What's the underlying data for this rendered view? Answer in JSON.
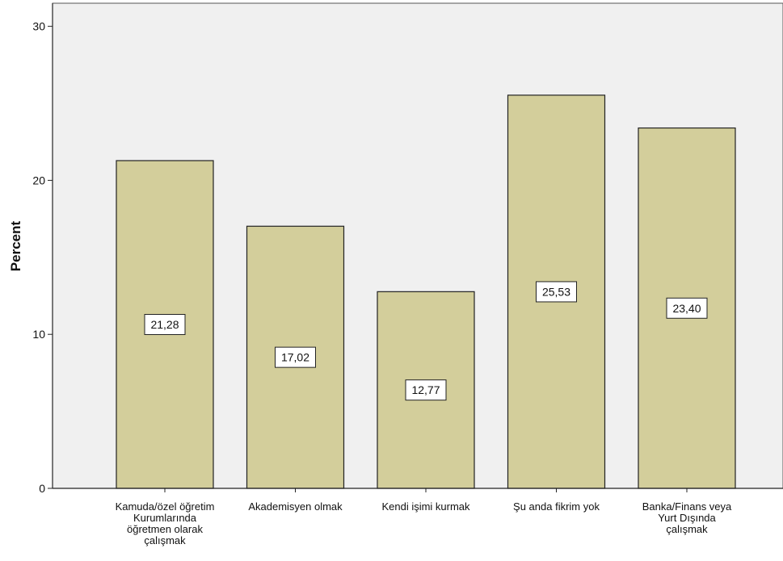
{
  "chart_data": {
    "type": "bar",
    "title": "",
    "xlabel": "",
    "ylabel": "Percent",
    "ylim": [
      0,
      31.5
    ],
    "yticks": [
      0,
      10,
      20,
      30
    ],
    "ytick_labels": [
      "0",
      "10",
      "20",
      "30"
    ],
    "categories": [
      [
        "Kamuda/özel öğretim",
        "Kurumlarında",
        "öğretmen olarak",
        "çalışmak"
      ],
      [
        "Akademisyen olmak"
      ],
      [
        "Kendi işimi kurmak"
      ],
      [
        "Şu anda fikrim yok"
      ],
      [
        "Banka/Finans veya",
        "Yurt Dışında",
        "çalışmak"
      ]
    ],
    "values": [
      21.28,
      17.02,
      12.77,
      25.53,
      23.4
    ],
    "data_labels": [
      "21,28",
      "17,02",
      "12,77",
      "25,53",
      "23,40"
    ],
    "colors": {
      "bar_fill": "#d3ce9b",
      "bar_stroke": "#222222",
      "plot_background": "#f0f0f0",
      "axis": "#222222"
    }
  }
}
